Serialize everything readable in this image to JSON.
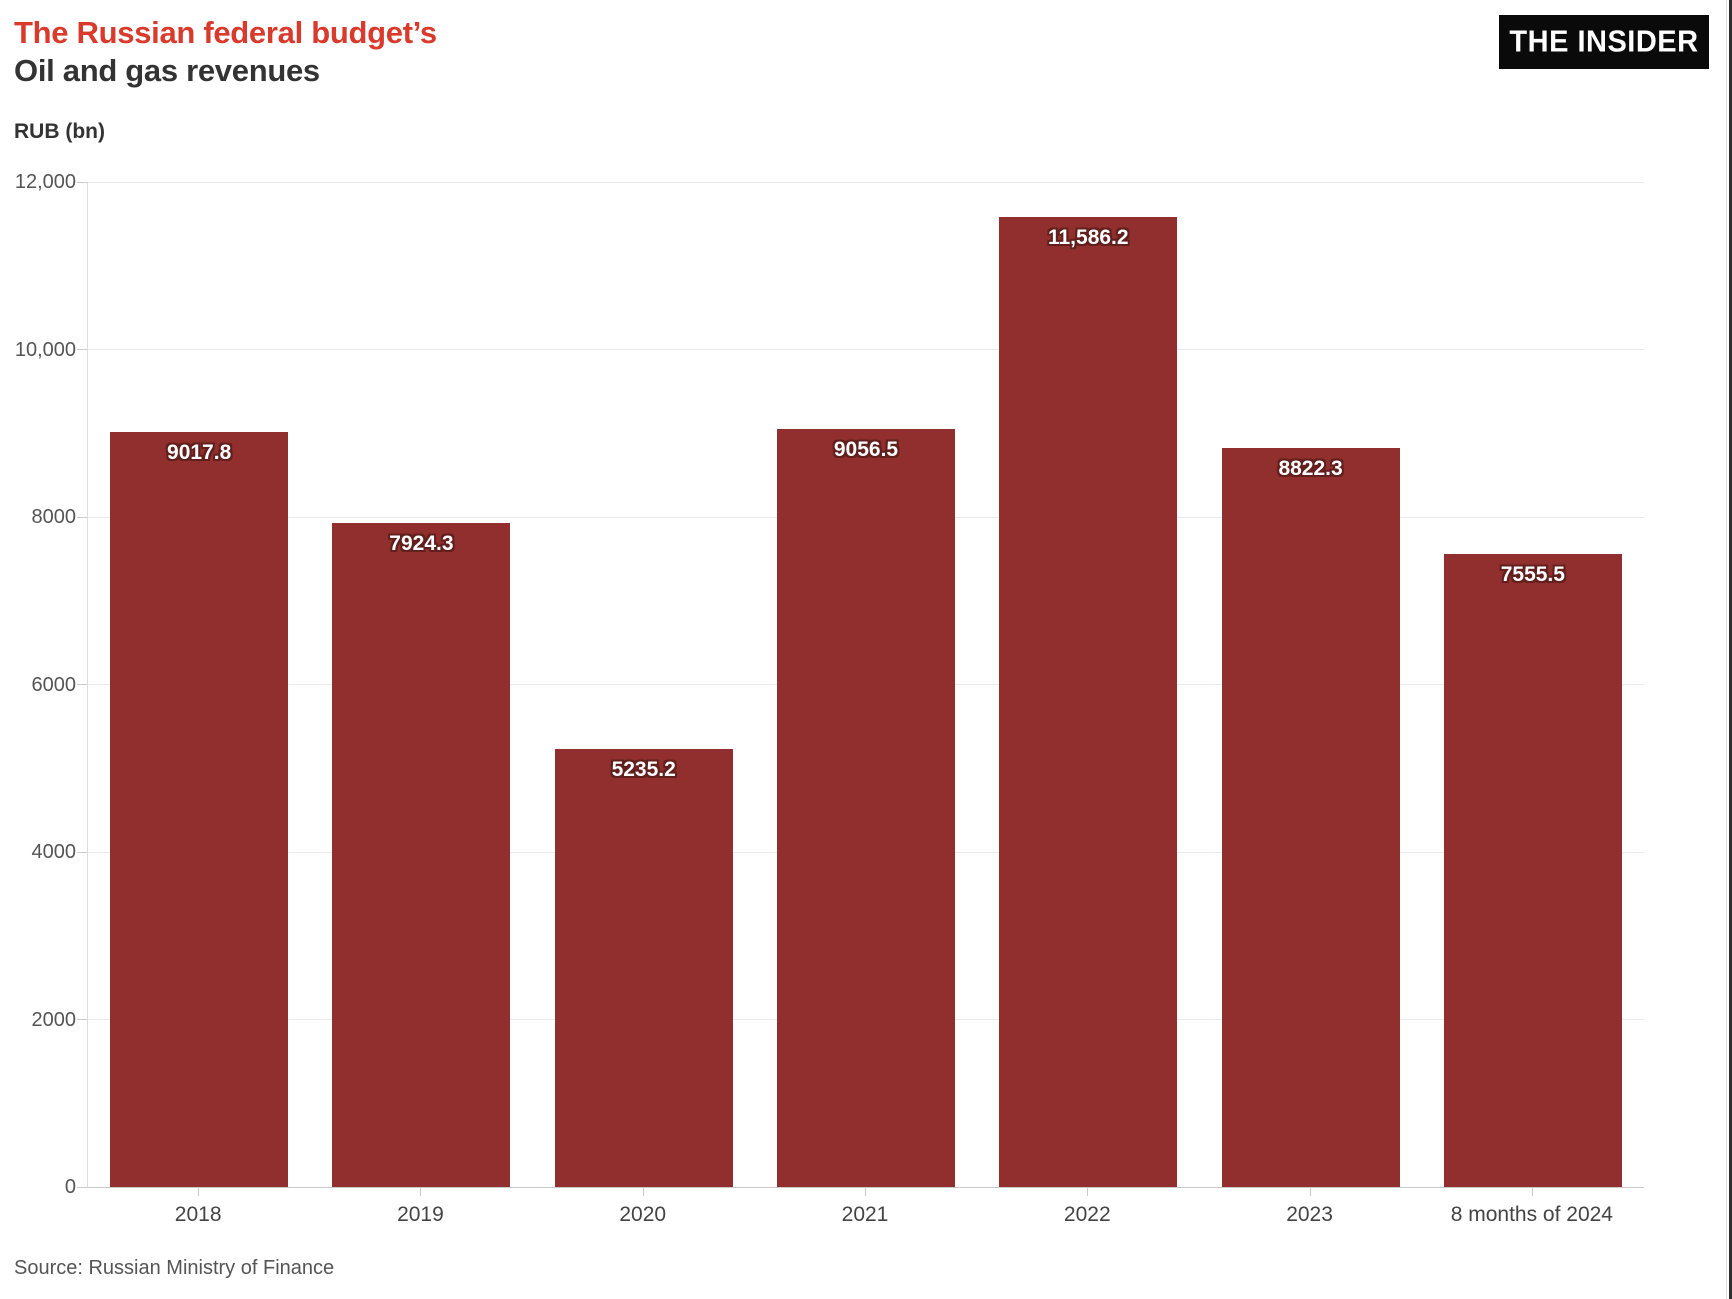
{
  "header": {
    "title_line1": "The Russian federal budget’s",
    "title_line2": "Oil and gas revenues",
    "logo_text": "THE INSIDER"
  },
  "chart_data": {
    "type": "bar",
    "title": "The Russian federal budget’s Oil and gas revenues",
    "ylabel": "RUB (bn)",
    "xlabel": "",
    "categories": [
      "2018",
      "2019",
      "2020",
      "2021",
      "2022",
      "2023",
      "8 months of 2024"
    ],
    "values": [
      9017.8,
      7924.3,
      5235.2,
      9056.5,
      11586.2,
      8822.3,
      7555.5
    ],
    "value_labels": [
      "9017.8",
      "7924.3",
      "5235.2",
      "9056.5",
      "11,586.2",
      "8822.3",
      "7555.5"
    ],
    "ylim": [
      0,
      12000
    ],
    "yticks": [
      0,
      2000,
      4000,
      6000,
      8000,
      10000,
      12000
    ],
    "ytick_labels": [
      "0",
      "2000",
      "4000",
      "6000",
      "8000",
      "10,000",
      "12,000"
    ],
    "grid": true,
    "legend": "none",
    "bar_color": "#902f2d",
    "value_label_color": "#ffffff",
    "value_label_outline_color": "#611f1d"
  },
  "colors": {
    "title_accent": "#d93a2b",
    "title_dark": "#333333",
    "logo_background": "#0a0a0a",
    "logo_text": "#ffffff",
    "axis_text": "#555555",
    "gridline": "#e9e9e9"
  },
  "footer": {
    "source": "Source: Russian Ministry of Finance"
  }
}
